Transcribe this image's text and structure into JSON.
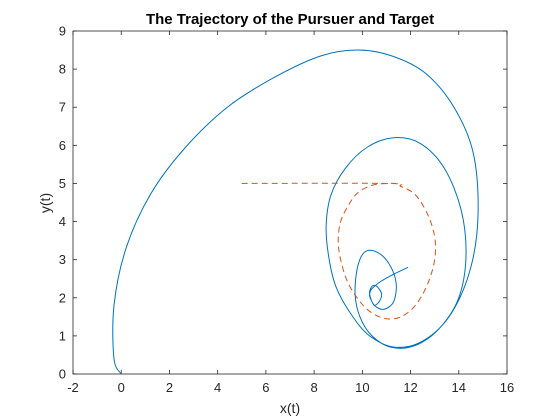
{
  "chart_data": {
    "type": "line",
    "title": "The Trajectory of the Pursuer and Target",
    "xlabel": "x(t)",
    "ylabel": "y(t)",
    "xlim": [
      -2,
      16
    ],
    "ylim": [
      0,
      9
    ],
    "xticks": [
      "-2",
      "0",
      "2",
      "4",
      "6",
      "8",
      "10",
      "12",
      "14",
      "16"
    ],
    "yticks": [
      "0",
      "1",
      "2",
      "3",
      "4",
      "5",
      "6",
      "7",
      "8",
      "9"
    ],
    "grid": false,
    "box": true,
    "series": [
      {
        "style": "solid",
        "color": "#0072BD",
        "x": [
          0,
          -0.3,
          -0.3,
          0.2,
          1.2,
          2.6,
          4.4,
          6.4,
          8.3,
          9.8,
          11.2,
          12.6,
          13.8,
          14.6,
          14.8,
          14.5,
          13.7,
          12.6,
          11.4,
          10.3,
          9.5,
          8.9,
          8.6,
          8.5,
          8.7,
          9.3,
          10.2,
          11.3,
          12.4,
          13.4,
          14.1,
          14.3,
          14.0,
          13.2,
          12.2,
          11.2,
          10.4,
          9.9,
          9.7,
          9.8,
          10.1,
          10.6,
          11.1,
          11.4,
          11.3,
          10.9,
          10.5,
          10.3,
          10.4,
          10.6,
          10.8,
          10.7,
          10.5,
          10.4,
          10.3,
          10.35,
          10.5,
          10.7,
          10.9,
          11.1,
          11.3,
          11.5,
          11.7,
          11.9
        ],
        "y": [
          0,
          0.4,
          1.8,
          3.3,
          4.7,
          5.9,
          7.0,
          7.8,
          8.35,
          8.5,
          8.35,
          7.9,
          7.0,
          5.8,
          4.2,
          2.8,
          1.6,
          0.9,
          0.7,
          1.0,
          1.6,
          2.3,
          3.1,
          3.9,
          4.7,
          5.4,
          5.95,
          6.2,
          6.05,
          5.4,
          4.3,
          3.1,
          2.0,
          1.2,
          0.75,
          0.7,
          1.0,
          1.5,
          2.1,
          2.8,
          3.2,
          3.2,
          2.9,
          2.4,
          1.9,
          1.7,
          1.8,
          2.1,
          2.3,
          2.3,
          2.1,
          1.9,
          1.8,
          1.9,
          2.05,
          2.2,
          2.3,
          2.4,
          2.48,
          2.55,
          2.62,
          2.68,
          2.74,
          2.8
        ]
      },
      {
        "style": "dashed",
        "color": "#D95319",
        "x": [
          5,
          11.0,
          11.6,
          12.2,
          12.7,
          13.0,
          13.0,
          12.7,
          12.2,
          11.6,
          11.0,
          10.4,
          9.9,
          9.4,
          9.1,
          9.0,
          9.1,
          9.4,
          9.8,
          10.4,
          11.0,
          11.4
        ],
        "y": [
          5,
          5.0,
          4.92,
          4.7,
          4.2,
          3.6,
          3.0,
          2.35,
          1.8,
          1.5,
          1.45,
          1.6,
          1.9,
          2.4,
          3.0,
          3.5,
          4.0,
          4.4,
          4.75,
          4.95,
          5.0,
          5.0
        ]
      }
    ]
  }
}
